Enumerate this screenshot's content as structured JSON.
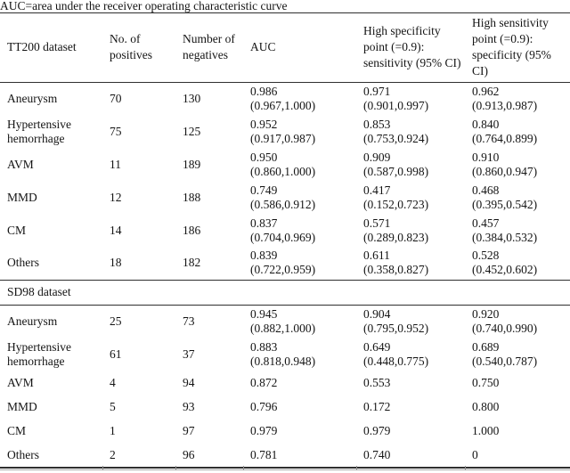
{
  "caption": "AUC=area under the receiver operating characteristic curve",
  "header": {
    "columns": [
      "TT200 dataset",
      "No. of positives",
      "Number of negatives",
      "AUC",
      "High specificity point (=0.9): sensitivity (95% CI)",
      "High sensitivity point (=0.9): specificity (95% CI)"
    ]
  },
  "sections": [
    {
      "name": null,
      "rows": [
        {
          "label": "Aneurysm",
          "positives": "70",
          "negatives": "130",
          "auc": "0.986",
          "auc_ci": "(0.967,1.000)",
          "spec_point_sensitivity": "0.971",
          "spec_point_ci": "(0.901,0.997)",
          "sens_point_specificity": "0.962",
          "sens_point_ci": "(0.913,0.987)"
        },
        {
          "label": "Hypertensive hemorrhage",
          "positives": "75",
          "negatives": "125",
          "auc": "0.952",
          "auc_ci": "(0.917,0.987)",
          "spec_point_sensitivity": "0.853",
          "spec_point_ci": "(0.753,0.924)",
          "sens_point_specificity": "0.840",
          "sens_point_ci": "(0.764,0.899)"
        },
        {
          "label": "AVM",
          "positives": "11",
          "negatives": "189",
          "auc": "0.950",
          "auc_ci": "(0.860,1.000)",
          "spec_point_sensitivity": "0.909",
          "spec_point_ci": "(0.587,0.998)",
          "sens_point_specificity": "0.910",
          "sens_point_ci": "(0.860,0.947)"
        },
        {
          "label": "MMD",
          "positives": "12",
          "negatives": "188",
          "auc": "0.749",
          "auc_ci": "(0.586,0.912)",
          "spec_point_sensitivity": "0.417",
          "spec_point_ci": "(0.152,0.723)",
          "sens_point_specificity": "0.468",
          "sens_point_ci": "(0.395,0.542)"
        },
        {
          "label": "CM",
          "positives": "14",
          "negatives": "186",
          "auc": "0.837",
          "auc_ci": "(0.704,0.969)",
          "spec_point_sensitivity": "0.571",
          "spec_point_ci": "(0.289,0.823)",
          "sens_point_specificity": "0.457",
          "sens_point_ci": "(0.384,0.532)"
        },
        {
          "label": "Others",
          "positives": "18",
          "negatives": "182",
          "auc": "0.839",
          "auc_ci": "(0.722,0.959)",
          "spec_point_sensitivity": "0.611",
          "spec_point_ci": "(0.358,0.827)",
          "sens_point_specificity": "0.528",
          "sens_point_ci": "(0.452,0.602)"
        }
      ]
    },
    {
      "name": "SD98 dataset",
      "rows": [
        {
          "label": "Aneurysm",
          "positives": "25",
          "negatives": "73",
          "auc": "0.945",
          "auc_ci": "(0.882,1.000)",
          "spec_point_sensitivity": "0.904",
          "spec_point_ci": "(0.795,0.952)",
          "sens_point_specificity": "0.920",
          "sens_point_ci": "(0.740,0.990)"
        },
        {
          "label": "Hypertensive hemorrhage",
          "positives": "61",
          "negatives": "37",
          "auc": "0.883",
          "auc_ci": "(0.818,0.948)",
          "spec_point_sensitivity": "0.649",
          "spec_point_ci": "(0.448,0.775)",
          "sens_point_specificity": "0.689",
          "sens_point_ci": "(0.540,0.787)"
        },
        {
          "label": "AVM",
          "positives": "4",
          "negatives": "94",
          "auc": "0.872",
          "auc_ci": "",
          "spec_point_sensitivity": "0.553",
          "spec_point_ci": "",
          "sens_point_specificity": "0.750",
          "sens_point_ci": ""
        },
        {
          "label": "MMD",
          "positives": "5",
          "negatives": "93",
          "auc": "0.796",
          "auc_ci": "",
          "spec_point_sensitivity": "0.172",
          "spec_point_ci": "",
          "sens_point_specificity": "0.800",
          "sens_point_ci": ""
        },
        {
          "label": "CM",
          "positives": "1",
          "negatives": "97",
          "auc": "0.979",
          "auc_ci": "",
          "spec_point_sensitivity": "0.979",
          "spec_point_ci": "",
          "sens_point_specificity": "1.000",
          "sens_point_ci": ""
        },
        {
          "label": "Others",
          "positives": "2",
          "negatives": "96",
          "auc": "0.781",
          "auc_ci": "",
          "spec_point_sensitivity": "0.740",
          "spec_point_ci": "",
          "sens_point_specificity": "0",
          "sens_point_ci": ""
        }
      ]
    }
  ],
  "ghost_tick_positions": [
    115,
    197,
    273,
    400,
    522
  ]
}
